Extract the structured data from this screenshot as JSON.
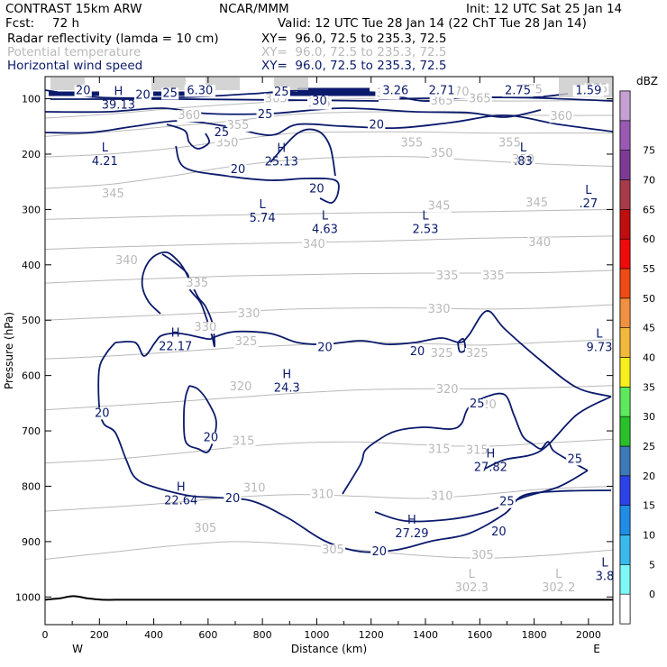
{
  "header": {
    "model": "CONTRAST 15km ARW",
    "org": "NCAR/MMM",
    "init": "Init: 12 UTC Sat 25 Jan 14",
    "fcst_label": "Fcst:",
    "fcst_value": "72 h",
    "valid": "Valid: 12 UTC Tue 28 Jan 14 (22 ChT Tue 28 Jan 14)",
    "fields": [
      {
        "name": "Radar reflectivity (lamda = 10 cm)",
        "xy": "XY=  96.0, 72.5 to 235.3, 72.5"
      },
      {
        "name": "Potential temperature",
        "xy": "XY=  96.0, 72.5 to 235.3, 72.5"
      },
      {
        "name": "Horizontal wind speed",
        "xy": "XY=  96.0, 72.5 to 235.3, 72.5"
      }
    ]
  },
  "colorbar": {
    "unit": "dBZ",
    "levels": [
      "0",
      "5",
      "10",
      "15",
      "20",
      "25",
      "30",
      "35",
      "40",
      "45",
      "50",
      "55",
      "60",
      "65",
      "70",
      "75"
    ],
    "colors": [
      "#ffffff",
      "#7ef7f7",
      "#3ab9ee",
      "#1f8ce6",
      "#2d41e8",
      "#3d79b6",
      "#29c129",
      "#5ee85e",
      "#f7ee1b",
      "#f2b83a",
      "#f09040",
      "#f04b14",
      "#f00a0a",
      "#c00e0e",
      "#a83a4a",
      "#7c3a96",
      "#9a5ab4",
      "#c7a0d2"
    ]
  },
  "chart_data": {
    "type": "contour-cross-section",
    "xlabel": "Distance (km)",
    "ylabel": "Pressure (hPa)",
    "xlim": [
      0,
      2090
    ],
    "ylim": [
      1050,
      60
    ],
    "xticks": [
      "0",
      "200",
      "400",
      "600",
      "800",
      "1000",
      "1200",
      "1400",
      "1600",
      "1800",
      "2000"
    ],
    "yticks": [
      "100",
      "200",
      "300",
      "400",
      "500",
      "600",
      "700",
      "800",
      "900",
      "1000"
    ],
    "x_end_labels": [
      "W",
      "E"
    ],
    "theta_contours": [
      {
        "label": "305",
        "y": [
          932,
          920,
          908,
          900,
          905,
          915,
          925,
          930,
          925,
          915
        ]
      },
      {
        "label": "310",
        "y": [
          845,
          838,
          830,
          820,
          815,
          818,
          822,
          815,
          805,
          800
        ]
      },
      {
        "label": "315",
        "y": [
          758,
          752,
          742,
          730,
          722,
          720,
          725,
          728,
          722,
          715
        ]
      },
      {
        "label": "320",
        "y": [
          662,
          655,
          648,
          640,
          632,
          626,
          624,
          624,
          622,
          618
        ]
      },
      {
        "label": "325",
        "y": [
          570,
          565,
          558,
          550,
          545,
          540,
          542,
          545,
          540,
          535
        ]
      },
      {
        "label": "330",
        "y": [
          500,
          495,
          490,
          485,
          480,
          478,
          478,
          480,
          478,
          472
        ]
      },
      {
        "label": "335",
        "y": [
          433,
          428,
          424,
          420,
          418,
          416,
          415,
          415,
          414,
          410
        ]
      },
      {
        "label": "340",
        "y": [
          372,
          368,
          365,
          362,
          360,
          358,
          355,
          352,
          350,
          348
        ]
      },
      {
        "label": "345",
        "y": [
          318,
          315,
          312,
          310,
          308,
          306,
          305,
          304,
          302,
          300
        ]
      },
      {
        "label": "350",
        "y": [
          262,
          255,
          240,
          222,
          210,
          205,
          205,
          212,
          218,
          222
        ]
      },
      {
        "label": "355",
        "y": [
          205,
          200,
          190,
          175,
          162,
          160,
          160,
          162,
          162,
          162
        ]
      },
      {
        "label": "360",
        "y": [
          168,
          160,
          150,
          140,
          128,
          124,
          124,
          128,
          130,
          130
        ]
      },
      {
        "label": "365",
        "y": [
          135,
          128,
          118,
          110,
          104,
          100,
          102,
          104,
          104,
          102
        ]
      }
    ],
    "theta_labels": [
      {
        "text": "305",
        "x": 590,
        "p": 876
      },
      {
        "text": "305",
        "x": 1060,
        "p": 915
      },
      {
        "text": "305",
        "x": 1610,
        "p": 925
      },
      {
        "text": "310",
        "x": 770,
        "p": 803
      },
      {
        "text": "310",
        "x": 1020,
        "p": 815
      },
      {
        "text": "310",
        "x": 1460,
        "p": 818
      },
      {
        "text": "315",
        "x": 730,
        "p": 719
      },
      {
        "text": "315",
        "x": 1450,
        "p": 733
      },
      {
        "text": "315",
        "x": 1590,
        "p": 735
      },
      {
        "text": "320",
        "x": 720,
        "p": 620
      },
      {
        "text": "320",
        "x": 1480,
        "p": 625
      },
      {
        "text": "320",
        "x": 1620,
        "p": 653
      },
      {
        "text": "325",
        "x": 740,
        "p": 539
      },
      {
        "text": "325",
        "x": 1460,
        "p": 560
      },
      {
        "text": "325",
        "x": 1590,
        "p": 560
      },
      {
        "text": "330",
        "x": 590,
        "p": 513
      },
      {
        "text": "330",
        "x": 750,
        "p": 488
      },
      {
        "text": "330",
        "x": 1450,
        "p": 480
      },
      {
        "text": "335",
        "x": 560,
        "p": 433
      },
      {
        "text": "335",
        "x": 1480,
        "p": 420
      },
      {
        "text": "335",
        "x": 1650,
        "p": 420
      },
      {
        "text": "340",
        "x": 300,
        "p": 392
      },
      {
        "text": "340",
        "x": 990,
        "p": 363
      },
      {
        "text": "340",
        "x": 1820,
        "p": 360
      },
      {
        "text": "345",
        "x": 250,
        "p": 272
      },
      {
        "text": "345",
        "x": 1450,
        "p": 294
      },
      {
        "text": "345",
        "x": 1810,
        "p": 288
      },
      {
        "text": "350",
        "x": 670,
        "p": 180
      },
      {
        "text": "350",
        "x": 1460,
        "p": 198
      },
      {
        "text": "350",
        "x": 1760,
        "p": 210
      },
      {
        "text": "355",
        "x": 710,
        "p": 148
      },
      {
        "text": "355",
        "x": 1350,
        "p": 180
      },
      {
        "text": "355",
        "x": 1710,
        "p": 180
      },
      {
        "text": "360",
        "x": 530,
        "p": 130
      },
      {
        "text": "360",
        "x": 1900,
        "p": 132
      },
      {
        "text": "365",
        "x": 850,
        "p": 100
      },
      {
        "text": "365",
        "x": 1010,
        "p": 108
      },
      {
        "text": "365",
        "x": 1460,
        "p": 104
      },
      {
        "text": "365",
        "x": 1600,
        "p": 100
      },
      {
        "text": "370",
        "x": 1260,
        "p": 90
      },
      {
        "text": "370",
        "x": 1520,
        "p": 88
      },
      {
        "text": "375",
        "x": 1790,
        "p": 84
      },
      {
        "text": "375",
        "x": 2030,
        "p": 82
      }
    ],
    "wind_labels": [
      {
        "text": "20",
        "x": 140,
        "p": 85
      },
      {
        "text": "25",
        "x": 870,
        "p": 88
      },
      {
        "text": "30",
        "x": 1010,
        "p": 104
      },
      {
        "text": "25",
        "x": 810,
        "p": 128
      },
      {
        "text": "25",
        "x": 650,
        "p": 161
      },
      {
        "text": "20",
        "x": 1220,
        "p": 147
      },
      {
        "text": "20",
        "x": 710,
        "p": 228
      },
      {
        "text": "20",
        "x": 1000,
        "p": 263
      },
      {
        "text": "20",
        "x": 360,
        "p": 93
      },
      {
        "text": "25",
        "x": 460,
        "p": 90
      },
      {
        "text": "20",
        "x": 1030,
        "p": 549
      },
      {
        "text": "20",
        "x": 1370,
        "p": 557
      },
      {
        "text": "20",
        "x": 210,
        "p": 668
      },
      {
        "text": "20",
        "x": 610,
        "p": 712
      },
      {
        "text": "25",
        "x": 1590,
        "p": 651
      },
      {
        "text": "25",
        "x": 1950,
        "p": 751
      },
      {
        "text": "20",
        "x": 690,
        "p": 822
      },
      {
        "text": "25",
        "x": 1700,
        "p": 828
      },
      {
        "text": "20",
        "x": 1670,
        "p": 882
      },
      {
        "text": "20",
        "x": 1230,
        "p": 918
      }
    ],
    "extrema": [
      {
        "kind": "H",
        "value": "39.13",
        "x": 270,
        "p": 93
      },
      {
        "kind": "",
        "value": "6.30",
        "x": 570,
        "p": 85
      },
      {
        "kind": "",
        "value": "3.26",
        "x": 1290,
        "p": 85
      },
      {
        "kind": "",
        "value": "2.71",
        "x": 1460,
        "p": 85
      },
      {
        "kind": "",
        "value": "2.75",
        "x": 1740,
        "p": 85
      },
      {
        "kind": "",
        "value": "1.59",
        "x": 2000,
        "p": 85
      },
      {
        "kind": "L",
        "value": "4.21",
        "x": 220,
        "p": 195
      },
      {
        "kind": "H",
        "value": "25.13",
        "x": 870,
        "p": 196
      },
      {
        "kind": "L",
        "value": ".83",
        "x": 1760,
        "p": 195
      },
      {
        "kind": "L",
        "value": ".27",
        "x": 2000,
        "p": 272
      },
      {
        "kind": "L",
        "value": "5.74",
        "x": 800,
        "p": 298
      },
      {
        "kind": "L",
        "value": "4.63",
        "x": 1030,
        "p": 318
      },
      {
        "kind": "L",
        "value": "2.53",
        "x": 1400,
        "p": 318
      },
      {
        "kind": "H",
        "value": "22.17",
        "x": 480,
        "p": 530
      },
      {
        "kind": "L",
        "value": "9.73",
        "x": 2040,
        "p": 531
      },
      {
        "kind": "H",
        "value": "24.3",
        "x": 890,
        "p": 605
      },
      {
        "kind": "H",
        "value": "27.82",
        "x": 1640,
        "p": 748
      },
      {
        "kind": "H",
        "value": "22.64",
        "x": 500,
        "p": 808
      },
      {
        "kind": "H",
        "value": "27.29",
        "x": 1350,
        "p": 868
      },
      {
        "kind": "L",
        "value": "302.3",
        "x": 1570,
        "p": 965
      },
      {
        "kind": "L",
        "value": "302.2",
        "x": 1890,
        "p": 965
      },
      {
        "kind": "L",
        "value": "3.8",
        "x": 2060,
        "p": 945
      }
    ],
    "terrain_p": 1005
  }
}
